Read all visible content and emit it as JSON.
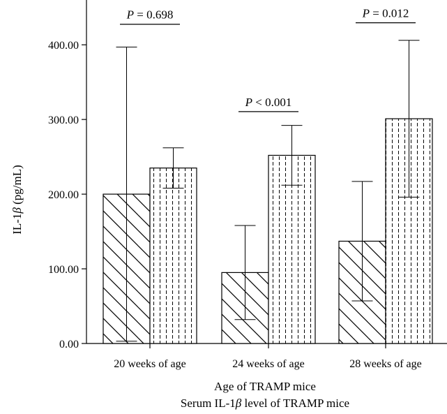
{
  "chart_data": {
    "type": "bar",
    "categories": [
      "20 weeks of age",
      "24 weeks of age",
      "28 weeks of age"
    ],
    "series": [
      {
        "pattern": "diagonal-hatch",
        "values": [
          200,
          95,
          137
        ],
        "error": [
          197,
          63,
          80
        ]
      },
      {
        "pattern": "vertical-dashed",
        "values": [
          235,
          252,
          301
        ],
        "error": [
          27,
          40,
          105
        ]
      }
    ],
    "ylim": [
      0,
      460
    ],
    "yticks": [
      0,
      100,
      200,
      300,
      400
    ],
    "ytick_labels": [
      "0.00",
      "100.00",
      "200.00",
      "300.00",
      "400.00"
    ],
    "ylabel": "IL-1β (pg/mL)",
    "xlabel": "Age of TRAMP mice",
    "caption": "Serum IL-1β level of TRAMP mice",
    "annotations": [
      {
        "category": 0,
        "label": "P = 0.698",
        "y": 435
      },
      {
        "category": 1,
        "label": "P < 0.001",
        "y": 318
      },
      {
        "category": 2,
        "label": "P = 0.012",
        "y": 437
      }
    ],
    "grid": false
  }
}
